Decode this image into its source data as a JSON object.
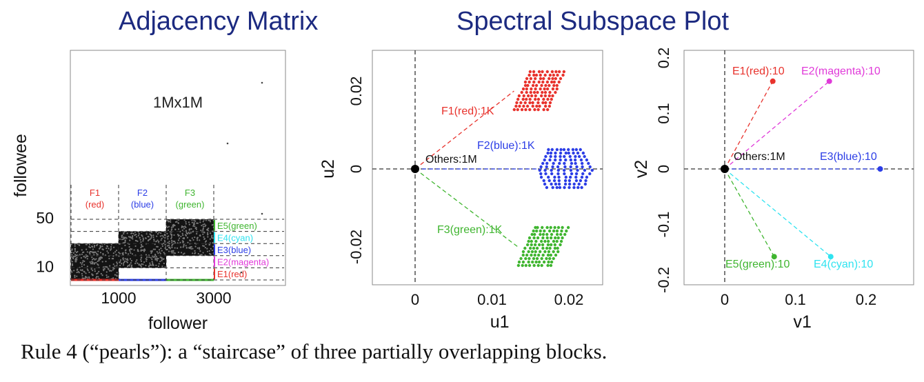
{
  "titles": {
    "left": "Adjacency Matrix",
    "right": "Spectral Subspace Plot"
  },
  "caption": "Rule 4 (“pearls”): a “staircase” of three partially overlapping blocks.",
  "chart_data": [
    {
      "type": "scatter",
      "panel": "adjacency-matrix",
      "xlabel": "follower",
      "ylabel": "followee",
      "annotation": "1Mx1M",
      "xticks": [
        "1000",
        "3000"
      ],
      "yticks": [
        "10",
        "50"
      ],
      "blocks": [
        {
          "name": "F1",
          "color_label": "(red)",
          "color": "#e8322c",
          "x": [
            0,
            1000
          ],
          "y": [
            0,
            30
          ]
        },
        {
          "name": "F2",
          "color_label": "(blue)",
          "color": "#2b3de6",
          "x": [
            1000,
            2000
          ],
          "y": [
            10,
            40
          ]
        },
        {
          "name": "F3",
          "color_label": "(green)",
          "color": "#3fb52f",
          "x": [
            2000,
            3000
          ],
          "y": [
            20,
            50
          ]
        }
      ],
      "edges": [
        {
          "label": "E5(green)",
          "color": "#3fb52f",
          "y": [
            40,
            50
          ]
        },
        {
          "label": "E4(cyan)",
          "color": "#2fe3f0",
          "y": [
            30,
            40
          ]
        },
        {
          "label": "E3(blue)",
          "color": "#2b3de6",
          "y": [
            20,
            30
          ]
        },
        {
          "label": "E2(magenta)",
          "color": "#e03ad9",
          "y": [
            10,
            20
          ]
        },
        {
          "label": "E1(red)",
          "color": "#e8322c",
          "y": [
            0,
            10
          ]
        }
      ]
    },
    {
      "type": "scatter",
      "panel": "spectral-u",
      "xlabel": "u1",
      "ylabel": "u2",
      "xlim": [
        -0.005,
        0.027
      ],
      "ylim": [
        -0.03,
        0.03
      ],
      "xticks": [
        "0",
        "0.01",
        "0.02"
      ],
      "yticks": [
        "-0.02",
        "0",
        "0.02"
      ],
      "origin_label": "Others:1M",
      "series": [
        {
          "name": "F1(red):1K",
          "color": "#e8322c",
          "center": [
            0.016,
            0.02
          ]
        },
        {
          "name": "F2(blue):1K",
          "color": "#2b3de6",
          "center": [
            0.0195,
            0.0
          ]
        },
        {
          "name": "F3(green):1K",
          "color": "#3fb52f",
          "center": [
            0.0165,
            -0.02
          ]
        }
      ]
    },
    {
      "type": "scatter",
      "panel": "spectral-v",
      "xlabel": "v1",
      "ylabel": "v2",
      "xlim": [
        -0.05,
        0.27
      ],
      "ylim": [
        -0.22,
        0.22
      ],
      "xticks": [
        "0",
        "0.1",
        "0.2"
      ],
      "yticks": [
        "-0.2",
        "-0.1",
        "0",
        "0.1",
        "0.2"
      ],
      "origin_label": "Others:1M",
      "points": [
        {
          "name": "E1(red):10",
          "color": "#e8322c",
          "x": 0.068,
          "y": 0.158
        },
        {
          "name": "E2(magenta):10",
          "color": "#e03ad9",
          "x": 0.148,
          "y": 0.158
        },
        {
          "name": "E3(blue):10",
          "color": "#2b3de6",
          "x": 0.22,
          "y": 0.0
        },
        {
          "name": "E4(cyan):10",
          "color": "#2fe3f0",
          "x": 0.15,
          "y": -0.158
        },
        {
          "name": "E5(green):10",
          "color": "#3fb52f",
          "x": 0.07,
          "y": -0.158
        }
      ]
    }
  ]
}
